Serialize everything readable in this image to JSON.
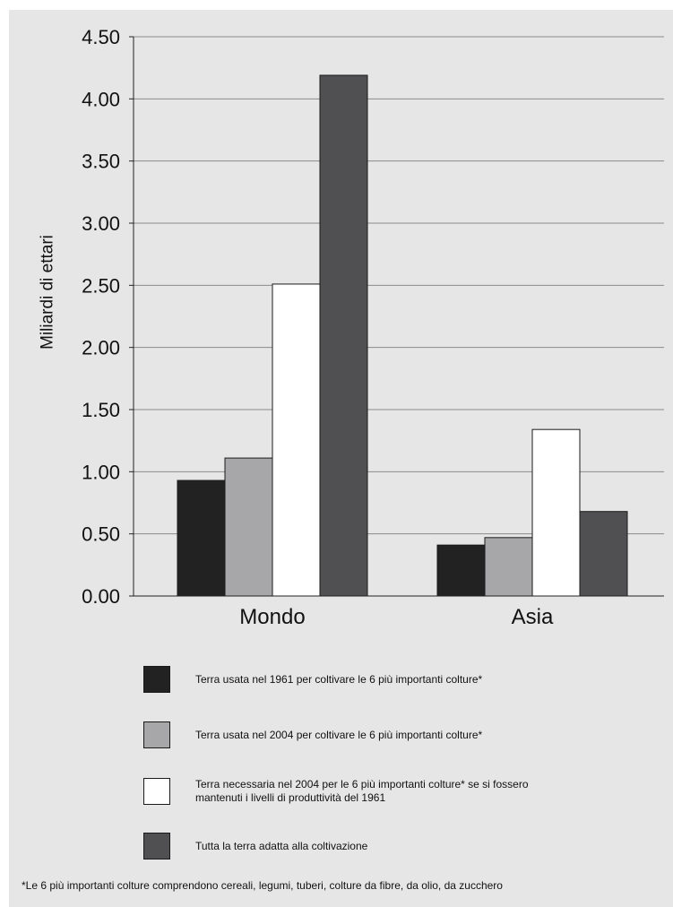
{
  "chart_data": {
    "type": "bar",
    "ylabel": "Miliardi di ettari",
    "ylim": [
      0,
      4.5
    ],
    "yticks": [
      "0.00",
      "0.50",
      "1.00",
      "1.50",
      "2.00",
      "2.50",
      "3.00",
      "3.50",
      "4.00",
      "4.50"
    ],
    "grid": true,
    "legend_position": "bottom",
    "categories": [
      "Mondo",
      "Asia"
    ],
    "series": [
      {
        "name": "Terra usata nel 1961 per coltivare le 6 più importanti colture*",
        "color": "#222222",
        "values": [
          0.93,
          0.41
        ]
      },
      {
        "name": "Terra usata nel 2004 per coltivare le 6 più importanti colture*",
        "color": "#a7a7a9",
        "values": [
          1.11,
          0.47
        ]
      },
      {
        "name": "Terra necessaria nel 2004 per le 6 più importanti colture* se si fossero\nmantenuti i livelli di produttività del 1961",
        "color": "#ffffff",
        "values": [
          2.51,
          1.34
        ]
      },
      {
        "name": "Tutta la terra adatta alla coltivazione",
        "color": "#505052",
        "values": [
          4.19,
          0.68
        ]
      }
    ]
  },
  "footnote": "*Le 6 più importanti colture comprendono cereali, legumi, tuberi, colture da fibre, da olio, da zucchero"
}
